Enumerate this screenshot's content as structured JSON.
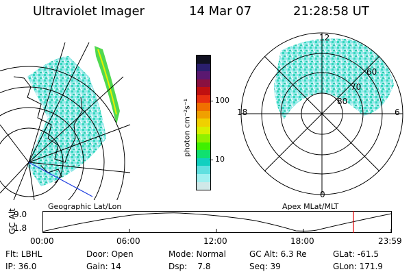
{
  "header": {
    "instrument": "Ultraviolet Imager",
    "date": "14 Mar 07",
    "time": "21:28:58 UT"
  },
  "colorbar": {
    "unit_label": "photon cm⁻²s⁻¹",
    "ticks": [
      "100",
      "10"
    ],
    "colors": [
      "#111122",
      "#2b1f6e",
      "#5a1870",
      "#8a1040",
      "#c01010",
      "#e83010",
      "#f07000",
      "#f0a000",
      "#f0d000",
      "#d8f000",
      "#90f000",
      "#40f000",
      "#10e070",
      "#10d0c0",
      "#60e0e0",
      "#a0f0f0",
      "#d0e8e8"
    ]
  },
  "polar_plot": {
    "mlt_labels": {
      "top": "12",
      "left": "18",
      "right": "6",
      "bottom": "0"
    },
    "lat_labels": [
      "60",
      "70",
      "80"
    ]
  },
  "timeline": {
    "ylabel": "GC Alt",
    "left_title": "Geographic Lat/Lon",
    "right_title": "Apex MLat/MLT",
    "y_ticks": [
      "9.0",
      "1.8"
    ],
    "x_ticks": [
      "00:00",
      "06:00",
      "12:00",
      "18:00",
      "23:59"
    ],
    "current_time_marker_color": "#e00000"
  },
  "status": {
    "row1": [
      {
        "key": "filter",
        "text": "Flt: LBHL"
      },
      {
        "key": "door",
        "text": "Door: Open"
      },
      {
        "key": "mode",
        "text": "Mode: Normal"
      },
      {
        "key": "gc_alt",
        "text": "GC Alt: 6.3 Re"
      },
      {
        "key": "glat",
        "text": "GLat: -61.5"
      }
    ],
    "row2": [
      {
        "key": "ip",
        "text": "IP: 36.0"
      },
      {
        "key": "gain",
        "text": "Gain: 14"
      },
      {
        "key": "dsp",
        "text": "Dsp:    7.8"
      },
      {
        "key": "seq",
        "text": "Seq: 39"
      },
      {
        "key": "glon",
        "text": "GLon: 171.9"
      }
    ]
  }
}
